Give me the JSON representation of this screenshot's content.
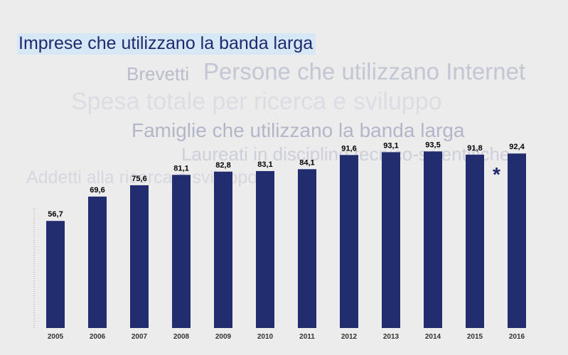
{
  "topics": {
    "active": "Imprese che utilizzano la banda larga",
    "brevetti": "Brevetti",
    "internet": "Persone che utilizzano Internet",
    "spesa": "Spesa totale per ricerca e sviluppo",
    "famiglie": "Famiglie che utilizzano la banda larga",
    "laureati": "Laureati in discipline tecnico-scientifiche",
    "addetti": "Addetti alla ricerca e sviluppo"
  },
  "asterisk": "*",
  "colors": {
    "bar": "#212d6e",
    "active_highlight": "#d6e8f5"
  },
  "chart_data": {
    "type": "bar",
    "title": "",
    "xlabel": "",
    "ylabel": "",
    "categories": [
      "2005",
      "2006",
      "2007",
      "2008",
      "2009",
      "2010",
      "2011",
      "2012",
      "2013",
      "2014",
      "2015",
      "2016"
    ],
    "values": [
      56.7,
      69.6,
      75.6,
      81.1,
      82.8,
      83.1,
      84.1,
      91.6,
      93.1,
      93.5,
      91.8,
      92.4
    ],
    "value_labels": [
      "56,7",
      "69,6",
      "75,6",
      "81,1",
      "82,8",
      "83,1",
      "84,1",
      "91,6",
      "93,1",
      "93,5",
      "91,8",
      "92,4"
    ],
    "ylim": [
      0,
      100
    ],
    "grid": false,
    "legend": "none"
  }
}
